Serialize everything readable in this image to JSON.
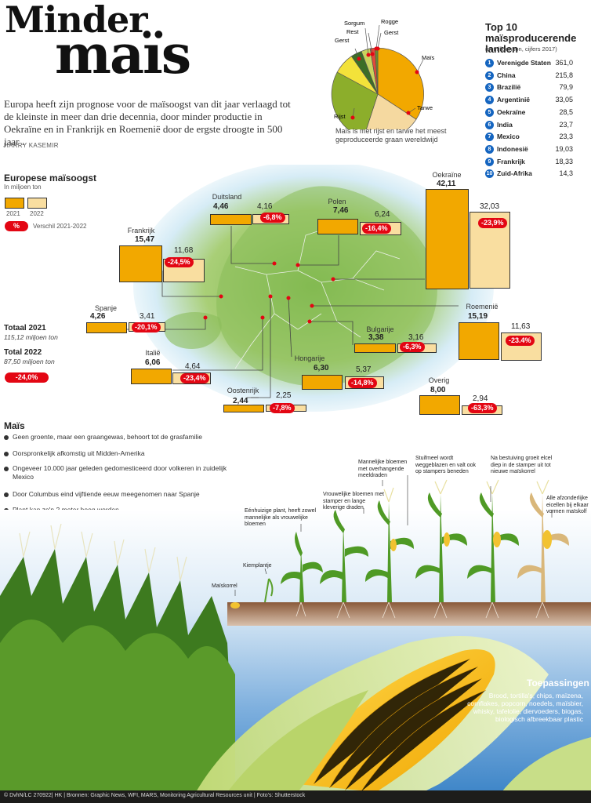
{
  "title": {
    "line1": "Minder",
    "line2": "maïs"
  },
  "intro": "Europa heeft zijn prognose voor de maïsoogst van dit jaar verlaagd tot de kleinste in meer dan drie decennia, door minder productie in Oekraïne en in Frankrijk en Roemenië door de ergste droogte in 500 jaar .",
  "author": "HARRY KASEMIR",
  "pie": {
    "labels": [
      "Maïs",
      "Tarwe",
      "Rijst",
      "Gerst",
      "Sorgum",
      "Rest",
      "Rogge",
      "Gerst"
    ],
    "note": "Maïs is met rijst en tarwe het meest geproduceerde graan wereldwijd",
    "colors": {
      "mais": "#f2a800",
      "tarwe": "#f5d9a0",
      "rijst": "#8cae2b",
      "gerst": "#f3e23a",
      "sorgum": "#3c6e27",
      "rest": "#c8d35e",
      "rogge": "#e04a3a"
    }
  },
  "top10": {
    "title": "Top 10 maïsproducerende landen",
    "subtitle": "(in miljoen ton, cijfers 2017)",
    "rows": [
      {
        "rank": "1",
        "name": "Verenigde Staten",
        "value": "361,0"
      },
      {
        "rank": "2",
        "name": "China",
        "value": "215,8"
      },
      {
        "rank": "3",
        "name": "Brazilië",
        "value": "79,9"
      },
      {
        "rank": "4",
        "name": "Argentinië",
        "value": "33,05"
      },
      {
        "rank": "5",
        "name": "Oekraïne",
        "value": "28,5"
      },
      {
        "rank": "6",
        "name": "India",
        "value": "23,7"
      },
      {
        "rank": "7",
        "name": "Mexico",
        "value": "23,3"
      },
      {
        "rank": "8",
        "name": "Indonesië",
        "value": "19,03"
      },
      {
        "rank": "9",
        "name": "Frankrijk",
        "value": "18,33"
      },
      {
        "rank": "10",
        "name": "Zuid-Afrika",
        "value": "14,3"
      }
    ]
  },
  "europe": {
    "title": "Europese maïsoogst",
    "subtitle": "In miljoen ton",
    "legend": {
      "y2021": "2021",
      "y2022": "2022",
      "pct": "%",
      "pct_label": "Verschil 2021-2022"
    },
    "colors": {
      "y2021": "#f2a800",
      "y2022": "#f9dea0",
      "pct": "#e30613"
    },
    "countries": [
      {
        "name": "Frankrijk",
        "v2021": "15,47",
        "v2022": "11,68",
        "pct": "-24,5%"
      },
      {
        "name": "Duitsland",
        "v2021": "4,46",
        "v2022": "4,16",
        "pct": "-6,8%"
      },
      {
        "name": "Polen",
        "v2021": "7,46",
        "v2022": "6,24",
        "pct": "-16,4%"
      },
      {
        "name": "Oekraïne",
        "v2021": "42,11",
        "v2022": "32,03",
        "pct": "-23,9%"
      },
      {
        "name": "Spanje",
        "v2021": "4,26",
        "v2022": "3,41",
        "pct": "-20,1%"
      },
      {
        "name": "Roemenië",
        "v2021": "15,19",
        "v2022": "11,63",
        "pct": "-23.4%"
      },
      {
        "name": "Bulgarije",
        "v2021": "3,38",
        "v2022": "3,16",
        "pct": "-6,3%"
      },
      {
        "name": "Italië",
        "v2021": "6,06",
        "v2022": "4,64",
        "pct": "-23,4%"
      },
      {
        "name": "Hongarije",
        "v2021": "6,30",
        "v2022": "5,37",
        "pct": "-14,8%"
      },
      {
        "name": "Oostenrijk",
        "v2021": "2,44",
        "v2022": "2,25",
        "pct": "-7,8%"
      },
      {
        "name": "Overig",
        "v2021": "8,00",
        "v2022": "2,94",
        "pct": "-63,3%"
      }
    ],
    "totals": {
      "t2021_label": "Totaal 2021",
      "t2021_value": "115,12 miljoen ton",
      "t2022_label": "Total 2022",
      "t2022_value": "87,50 miljoen ton",
      "pct": "-24,0%"
    }
  },
  "mais": {
    "title": "Maïs",
    "bullets": [
      "Geen groente, maar een graangewas, behoort tot de grasfamilie",
      "Oorspronkelijk afkomstig uit Midden-Amerika",
      "Ongeveer 10.000 jaar geleden gedomesticeerd door volkeren in zuidelijk Mexico",
      "Door Columbus eind vijftiende eeuw meegenomen naar Spanje",
      "Plant kan zo'n 2 meter hoog worden"
    ]
  },
  "growth": {
    "labels": {
      "maiskorrel": "Maïskorrel",
      "kiemplantje": "Kiemplantje",
      "eenhuizig": "Eénhuizige plant, heeft zowel mannelijke als vrouwelijke bloemen",
      "vrouwelijk": "Vrouwelijke bloemen met stamper en lange kleverige draden",
      "mannelijk": "Mannelijke bloemen met overhangende meeldraden",
      "stuifmeel": "Stuifmeel wordt weggeblazen en valt ook op stampers beneden",
      "bestuiving": "Na bestuiving groeit elcel diep in de stamper uit tot nieuwe maïskorrel",
      "afzonderlijke": "Alle afzonderlijke eicellen bij elkaar vormen maïskolf"
    }
  },
  "toepassingen": {
    "title": "Toepassingen",
    "text": "Brood, tortilla's, chips, maïzena, cornflakes, popcorn, noedels, maïsbier, whisky, tafelolie, diervoeders, biogas, biologisch afbreekbaar plastic"
  },
  "footer": "© DvhN/LC 270922| HK | Bronnen: Graphic News,  WFI, MARS, Monitoring Agricultural Resources unit  |  Foto's: Shutterstock"
}
